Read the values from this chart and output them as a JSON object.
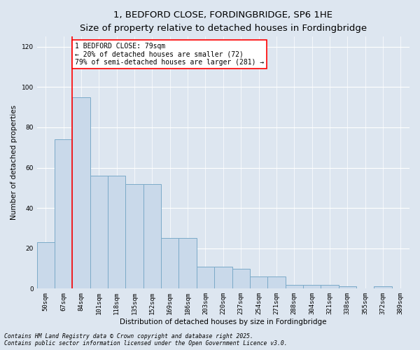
{
  "title_line1": "1, BEDFORD CLOSE, FORDINGBRIDGE, SP6 1HE",
  "title_line2": "Size of property relative to detached houses in Fordingbridge",
  "xlabel": "Distribution of detached houses by size in Fordingbridge",
  "ylabel": "Number of detached properties",
  "categories": [
    "50sqm",
    "67sqm",
    "84sqm",
    "101sqm",
    "118sqm",
    "135sqm",
    "152sqm",
    "169sqm",
    "186sqm",
    "203sqm",
    "220sqm",
    "237sqm",
    "254sqm",
    "271sqm",
    "288sqm",
    "304sqm",
    "321sqm",
    "338sqm",
    "355sqm",
    "372sqm",
    "389sqm"
  ],
  "values": [
    23,
    74,
    95,
    56,
    56,
    52,
    52,
    25,
    25,
    11,
    11,
    10,
    6,
    6,
    2,
    2,
    2,
    1,
    0,
    1,
    0
  ],
  "bar_color": "#c9d9ea",
  "bar_edge_color": "#7baac8",
  "red_line_x": 1.5,
  "annotation_text": "1 BEDFORD CLOSE: 79sqm\n← 20% of detached houses are smaller (72)\n79% of semi-detached houses are larger (281) →",
  "annotation_box_facecolor": "white",
  "annotation_box_edgecolor": "red",
  "ylim": [
    0,
    125
  ],
  "yticks": [
    0,
    20,
    40,
    60,
    80,
    100,
    120
  ],
  "background_color": "#dde6f0",
  "plot_background_color": "#dde6f0",
  "grid_color": "white",
  "title_fontsize": 9.5,
  "subtitle_fontsize": 8.5,
  "axis_label_fontsize": 7.5,
  "tick_fontsize": 6.5,
  "annotation_fontsize": 7,
  "footnote_fontsize": 5.8,
  "footnote_line1": "Contains HM Land Registry data © Crown copyright and database right 2025.",
  "footnote_line2": "Contains public sector information licensed under the Open Government Licence v3.0."
}
